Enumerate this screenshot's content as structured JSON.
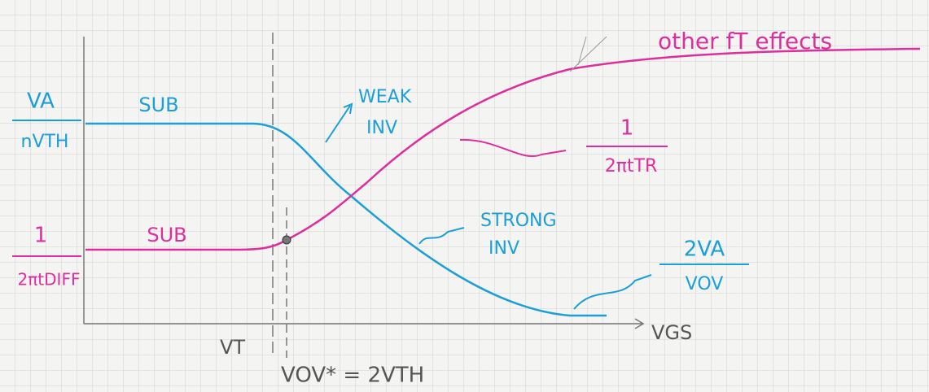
{
  "axes": {
    "x_label": "VGS"
  },
  "left_labels": {
    "upper": {
      "numerator": "VA",
      "denominator": "nVTH"
    },
    "lower": {
      "numerator": "1",
      "denominator": "2πtDIFF"
    }
  },
  "blue_curve": {
    "sub_label": "SUB",
    "weak": [
      "WEAK",
      "INV"
    ],
    "strong": [
      "STRONG",
      "INV"
    ],
    "end": {
      "numerator": "2VA",
      "denominator": "VOV"
    }
  },
  "pink_curve": {
    "sub_label": "SUB",
    "end": {
      "numerator": "1",
      "denominator": "2πtTR"
    },
    "top_note": "other fT effects"
  },
  "markers": {
    "vt": "VT",
    "vov": "VOV* = 2VTH"
  }
}
